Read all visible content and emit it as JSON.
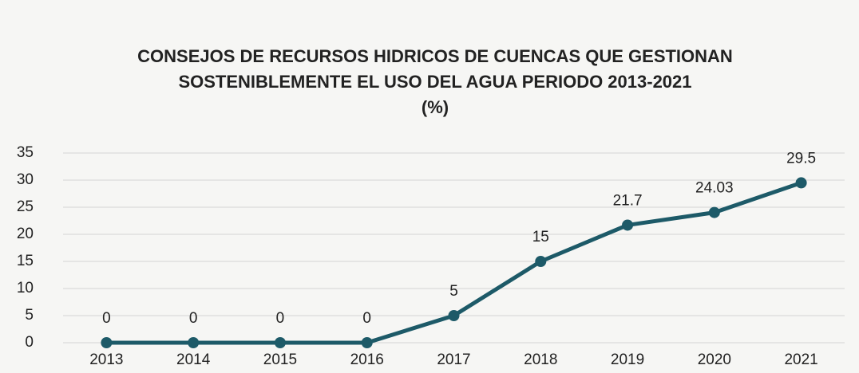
{
  "chart_data": {
    "type": "line",
    "title": [
      "CONSEJOS DE RECURSOS HIDRICOS DE CUENCAS QUE GESTIONAN",
      "SOSTENIBLEMENTE EL USO DEL AGUA PERIODO 2013-2021",
      "(%)"
    ],
    "categories": [
      "2013",
      "2014",
      "2015",
      "2016",
      "2017",
      "2018",
      "2019",
      "2020",
      "2021"
    ],
    "values": [
      0,
      0,
      0,
      0,
      5,
      15,
      21.7,
      24.03,
      29.5
    ],
    "color": "#1d5a68",
    "ylim": [
      0,
      35
    ],
    "yticks": [
      0,
      5,
      10,
      15,
      20,
      25,
      30,
      35
    ],
    "grid": true
  }
}
